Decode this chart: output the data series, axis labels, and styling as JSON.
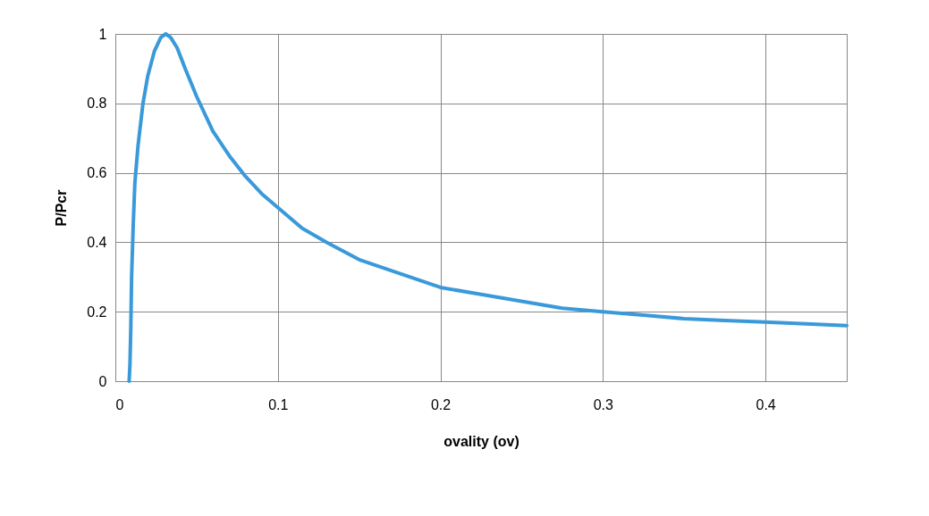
{
  "chart_data": {
    "type": "line",
    "xlabel": "ovality (ov)",
    "ylabel": "P/Pcr",
    "series": [
      {
        "color": "#3a9ad9",
        "x": [
          0.0085,
          0.009,
          0.0095,
          0.01,
          0.011,
          0.012,
          0.014,
          0.017,
          0.02,
          0.024,
          0.028,
          0.031,
          0.034,
          0.038,
          0.043,
          0.05,
          0.06,
          0.07,
          0.08,
          0.09,
          0.1,
          0.115,
          0.13,
          0.15,
          0.175,
          0.2,
          0.225,
          0.25,
          0.275,
          0.3,
          0.325,
          0.35,
          0.375,
          0.4,
          0.425,
          0.45
        ],
        "values": [
          0,
          0.05,
          0.15,
          0.3,
          0.45,
          0.57,
          0.68,
          0.8,
          0.88,
          0.95,
          0.99,
          1.0,
          0.99,
          0.96,
          0.9,
          0.82,
          0.72,
          0.65,
          0.59,
          0.54,
          0.5,
          0.44,
          0.4,
          0.35,
          0.31,
          0.27,
          0.25,
          0.23,
          0.21,
          0.2,
          0.19,
          0.18,
          0.175,
          0.17,
          0.165,
          0.16
        ]
      }
    ],
    "xlim": [
      0,
      0.45
    ],
    "xticks": [
      0,
      0.1,
      0.2,
      0.3,
      0.4
    ],
    "ylim": [
      0,
      1
    ],
    "yticks": [
      0,
      0.2,
      0.4,
      0.6,
      0.8,
      1
    ],
    "grid": true,
    "line_style": "solid",
    "marker": "none"
  }
}
